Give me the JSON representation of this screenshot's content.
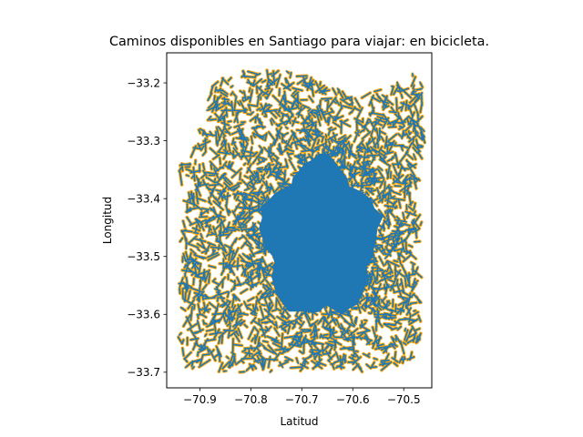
{
  "chart_data": {
    "type": "scatter",
    "title": "Caminos disponibles en Santiago para viajar: en bicicleta.",
    "xlabel": "Latitud",
    "ylabel": "Longitud",
    "xlim": [
      -70.965,
      -70.445
    ],
    "ylim": [
      -33.727,
      -33.148
    ],
    "xticks": [
      -70.9,
      -70.8,
      -70.7,
      -70.6,
      -70.5
    ],
    "xtick_labels": [
      "−70.9",
      "−70.8",
      "−70.7",
      "−70.6",
      "−70.5"
    ],
    "yticks": [
      -33.2,
      -33.3,
      -33.4,
      -33.5,
      -33.6,
      -33.7
    ],
    "ytick_labels": [
      "−33.2",
      "−33.3",
      "−33.4",
      "−33.5",
      "−33.6",
      "−33.7"
    ],
    "grid": false,
    "legend": "none",
    "series": [
      {
        "marker": "dot",
        "color": "#ffa500",
        "extent": {
          "x": [
            -70.948,
            -70.458
          ],
          "y": [
            -33.703,
            -33.168
          ]
        }
      },
      {
        "marker": "line",
        "color": "#1f77b4",
        "extent": {
          "x": [
            -70.948,
            -70.458
          ],
          "y": [
            -33.703,
            -33.168
          ]
        }
      }
    ]
  }
}
